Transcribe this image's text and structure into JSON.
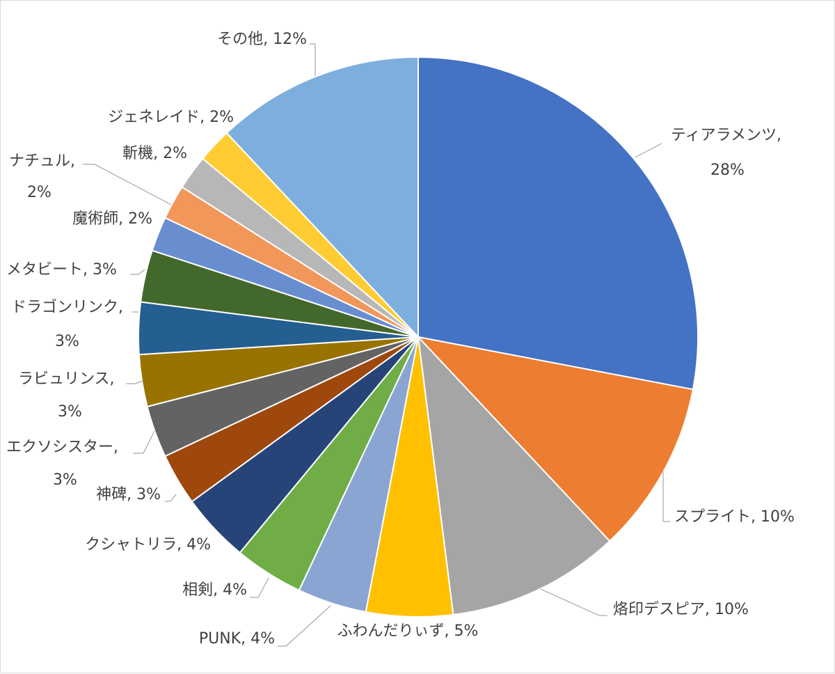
{
  "chart_data": {
    "type": "pie",
    "categories": [
      "ティアラメンツ",
      "スプライト",
      "烙印デスピア",
      "ふわんだりぃず",
      "PUNK",
      "相剣",
      "クシャトリラ",
      "神碑",
      "エクソシスター",
      "ラビュリンス",
      "ドラゴンリンク",
      "メタビート",
      "魔術師",
      "ナチュル",
      "斬機",
      "ジェネレイド",
      "その他"
    ],
    "values": [
      28,
      10,
      10,
      5,
      4,
      4,
      4,
      3,
      3,
      3,
      3,
      3,
      2,
      2,
      2,
      2,
      12
    ],
    "value_labels": [
      "28%",
      "10%",
      "10%",
      "5%",
      "4%",
      "4%",
      "4%",
      "3%",
      "3%",
      "3%",
      "3%",
      "3%",
      "2%",
      "2%",
      "2%",
      "2%",
      "12%"
    ],
    "colors": [
      "#4472C4",
      "#ED7D31",
      "#A5A5A5",
      "#FFC000",
      "#8AA5D1",
      "#70AD47",
      "#264478",
      "#9E480E",
      "#636363",
      "#997300",
      "#255E91",
      "#43682B",
      "#698ED0",
      "#F1975A",
      "#B7B7B7",
      "#FFCD33",
      "#7DAEDE"
    ],
    "label_format": "{category}, {percent}",
    "legend": "none"
  }
}
